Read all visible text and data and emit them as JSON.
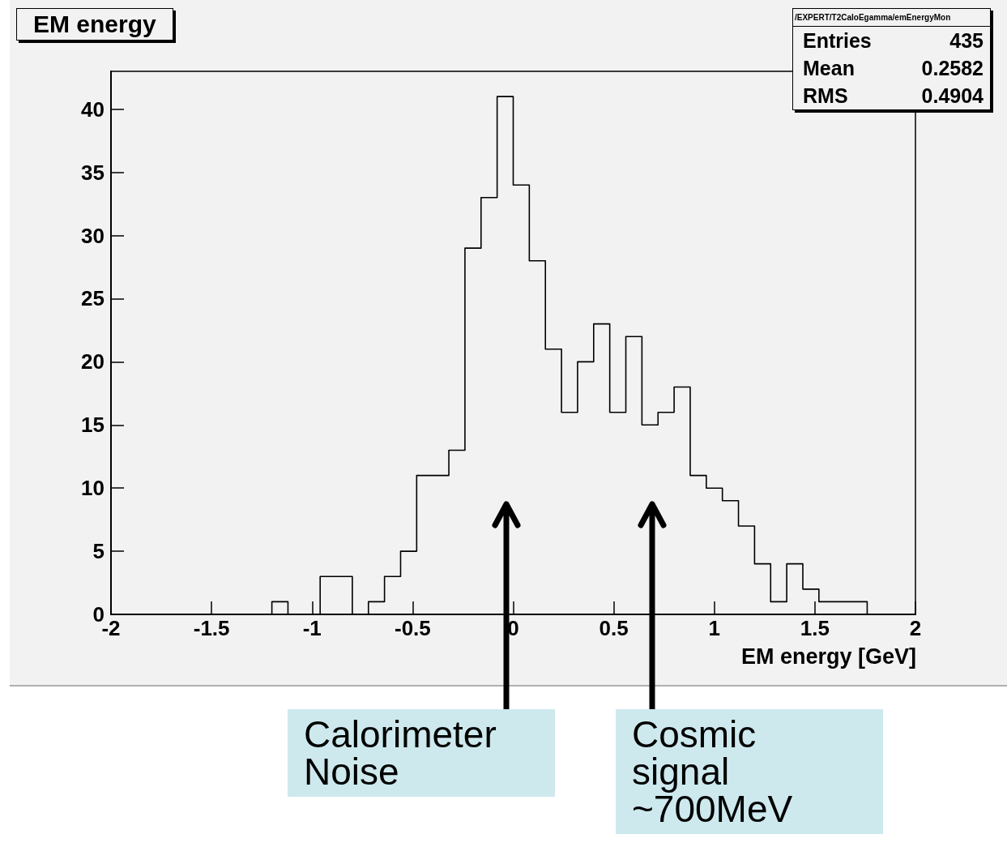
{
  "chart_data": {
    "type": "histogram",
    "title": "EM energy",
    "xlabel": "EM energy [GeV]",
    "color": "#000000",
    "bins": [
      -2,
      -1.92,
      -1.84,
      -1.76,
      -1.68,
      -1.6,
      -1.52,
      -1.44,
      -1.36,
      -1.28,
      -1.2,
      -1.12,
      -1.04,
      -0.96,
      -0.88,
      -0.8,
      -0.72,
      -0.64,
      -0.56,
      -0.48,
      -0.4,
      -0.32,
      -0.24,
      -0.16,
      -0.08,
      0,
      0.08,
      0.16,
      0.24,
      0.32,
      0.4,
      0.48,
      0.56,
      0.64,
      0.72,
      0.8,
      0.88,
      0.96,
      1.04,
      1.12,
      1.2,
      1.28,
      1.36,
      1.44,
      1.52,
      1.6,
      1.68,
      1.76,
      1.84,
      1.92,
      2
    ],
    "values": [
      0,
      0,
      0,
      0,
      0,
      0,
      0,
      0,
      0,
      0,
      1,
      0,
      0,
      3,
      3,
      0,
      1,
      3,
      5,
      11,
      11,
      13,
      29,
      33,
      41,
      34,
      28,
      21,
      16,
      20,
      23,
      16,
      22,
      15,
      16,
      18,
      11,
      10,
      9,
      7,
      4,
      1,
      4,
      2,
      1,
      1,
      1,
      0,
      0,
      0
    ],
    "xlim": [
      -2,
      2
    ],
    "xticks": [
      -2,
      -1.5,
      -1,
      -0.5,
      0,
      0.5,
      1,
      1.5,
      2
    ],
    "ylim": [
      0,
      43
    ],
    "yticks": [
      0,
      5,
      10,
      15,
      20,
      25,
      30,
      35,
      40
    ],
    "grid": false,
    "annotations": [
      "/EXPERT/T2CaloEgamma/emEnergyMon",
      "Entries 435",
      "Mean 0.2582",
      "RMS 0.4904",
      "Calorimeter\nNoise",
      "Cosmic\nsignal\n~700MeV"
    ]
  }
}
